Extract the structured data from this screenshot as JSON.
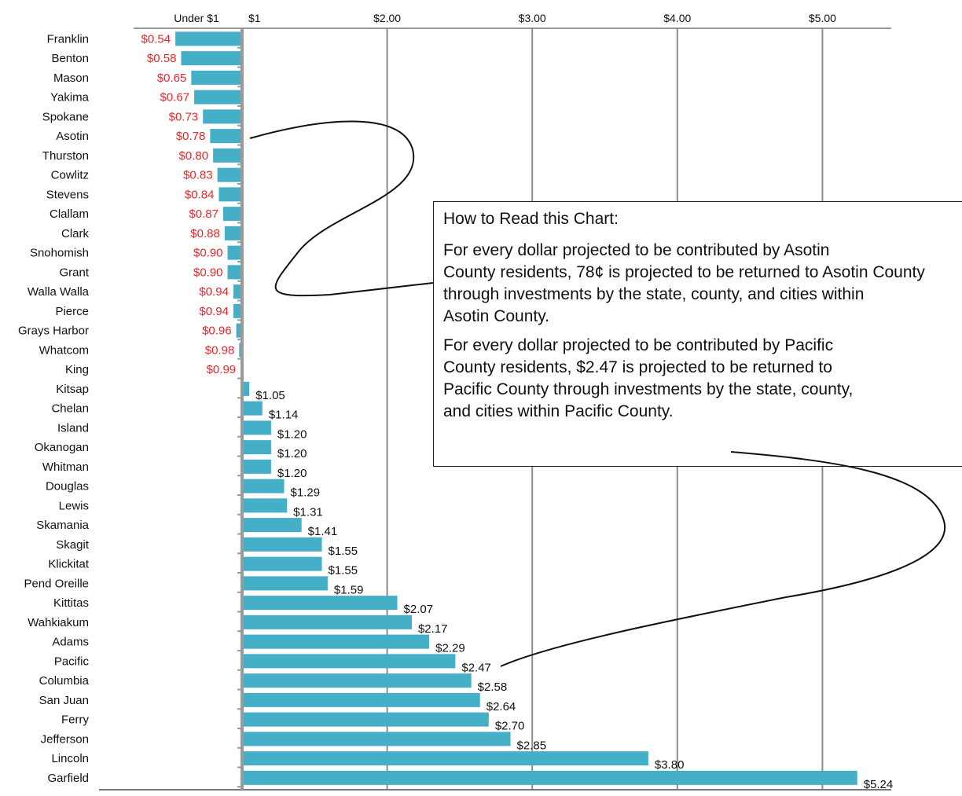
{
  "chart_data": {
    "type": "bar",
    "orientation": "horizontal",
    "categories": [
      "Franklin",
      "Benton",
      "Mason",
      "Yakima",
      "Spokane",
      "Asotin",
      "Thurston",
      "Cowlitz",
      "Stevens",
      "Clallam",
      "Clark",
      "Snohomish",
      "Grant",
      "Walla Walla",
      "Pierce",
      "Grays Harbor",
      "Whatcom",
      "King",
      "Kitsap",
      "Chelan",
      "Island",
      "Okanogan",
      "Whitman",
      "Douglas",
      "Lewis",
      "Skamania",
      "Skagit",
      "Klickitat",
      "Pend Oreille",
      "Kittitas",
      "Wahkiakum",
      "Adams",
      "Pacific",
      "Columbia",
      "San Juan",
      "Ferry",
      "Jefferson",
      "Lincoln",
      "Garfield"
    ],
    "values": [
      0.54,
      0.58,
      0.65,
      0.67,
      0.73,
      0.78,
      0.8,
      0.83,
      0.84,
      0.87,
      0.88,
      0.9,
      0.9,
      0.94,
      0.94,
      0.96,
      0.98,
      0.99,
      1.05,
      1.14,
      1.2,
      1.2,
      1.2,
      1.29,
      1.31,
      1.41,
      1.55,
      1.55,
      1.59,
      2.07,
      2.17,
      2.29,
      2.47,
      2.58,
      2.64,
      2.7,
      2.85,
      3.8,
      5.24
    ],
    "value_labels": [
      "$0.54",
      "$0.58",
      "$0.65",
      "$0.67",
      "$0.73",
      "$0.78",
      "$0.80",
      "$0.83",
      "$0.84",
      "$0.87",
      "$0.88",
      "$0.90",
      "$0.90",
      "$0.94",
      "$0.94",
      "$0.96",
      "$0.98",
      "$0.99",
      "$1.05",
      "$1.14",
      "$1.20",
      "$1.20",
      "$1.20",
      "$1.29",
      "$1.31",
      "$1.41",
      "$1.55",
      "$1.55",
      "$1.59",
      "$2.07",
      "$2.17",
      "$2.29",
      "$2.47",
      "$2.58",
      "$2.64",
      "$2.70",
      "$2.85",
      "$3.80",
      "$5.24"
    ],
    "axis_ticks": [
      {
        "label": "Under $1",
        "value": 0.5
      },
      {
        "label": "$1",
        "value": 1
      },
      {
        "label": "$2.00",
        "value": 2
      },
      {
        "label": "$3.00",
        "value": 3
      },
      {
        "label": "$4.00",
        "value": 4
      },
      {
        "label": "$5.00",
        "value": 5
      }
    ],
    "xlim": [
      0,
      5.45
    ],
    "baseline": 1,
    "grid": true,
    "colors": {
      "bar": "#45afc8",
      "under_label": "#e8262b",
      "over_label": "#111111",
      "grid": "#8c8c8c",
      "baseline": "#9a9a9a"
    }
  },
  "note": {
    "title": "How to Read this Chart:",
    "asotin_lines": [
      "For every dollar projected to be contributed by Asotin",
      "County residents, 78¢ is projected to be returned to Asotin County",
      "through investments by the state, county, and cities within",
      "Asotin County."
    ],
    "pacific_lines": [
      "For every dollar projected to be contributed by Pacific",
      "County residents, $2.47 is projected to be returned to",
      "Pacific County through investments by the state, county,",
      "and cities within Pacific County."
    ]
  }
}
